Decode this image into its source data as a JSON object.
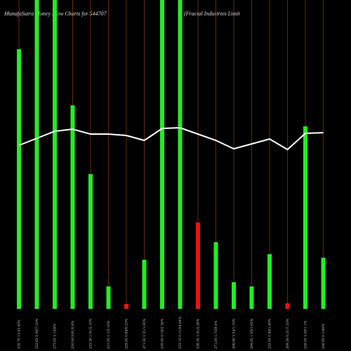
{
  "chart_data": {
    "type": "bar",
    "title": "MunafaSutra  Money Flow  Charts for 544707",
    "subtitle": "(Fractal Industries Limit",
    "categories": [
      "230.70 13.02.40%",
      "222.65 5.00/7.33%",
      "273.05 3.15/8%",
      "230.00 9.61/0.6%",
      "233.36 1.01/3.15%",
      "231.55 1.1/5.16%",
      "229.05 0.68/0.23%",
      "271.20 1.51/1.95%",
      "230.00 0.19/2.34%",
      "233.70 0.11/04.04%",
      "236.30 3.51/2.26%",
      "271.00 1.7/29.4%",
      "206.80 3.04/1.15%",
      "209.05 1.05/1.65%",
      "232.05 0.99/1.49%",
      "209.30 0.21/7.23%",
      "228.05 3.00/1.1%",
      "226.95 0.1/46%"
    ],
    "values": [
      370,
      460,
      460,
      290,
      192,
      32,
      7,
      70,
      460,
      460,
      123,
      95,
      38,
      32,
      78,
      8,
      260,
      73
    ],
    "colors": [
      "#22ee22",
      "#22ee22",
      "#22ee22",
      "#22ee22",
      "#22ee22",
      "#22ee22",
      "#ee1111",
      "#22ee22",
      "#22ee22",
      "#22ee22",
      "#ee1111",
      "#22ee22",
      "#22ee22",
      "#22ee22",
      "#22ee22",
      "#ee1111",
      "#22ee22",
      "#22ee22"
    ],
    "line_values": [
      233,
      243,
      253,
      256,
      249,
      249,
      247,
      240,
      257,
      258,
      249,
      240,
      228,
      235,
      242,
      227,
      250,
      251
    ],
    "line_color": "#ffffff",
    "grid_color": "#7a3a00",
    "ylim": [
      0,
      440
    ]
  }
}
